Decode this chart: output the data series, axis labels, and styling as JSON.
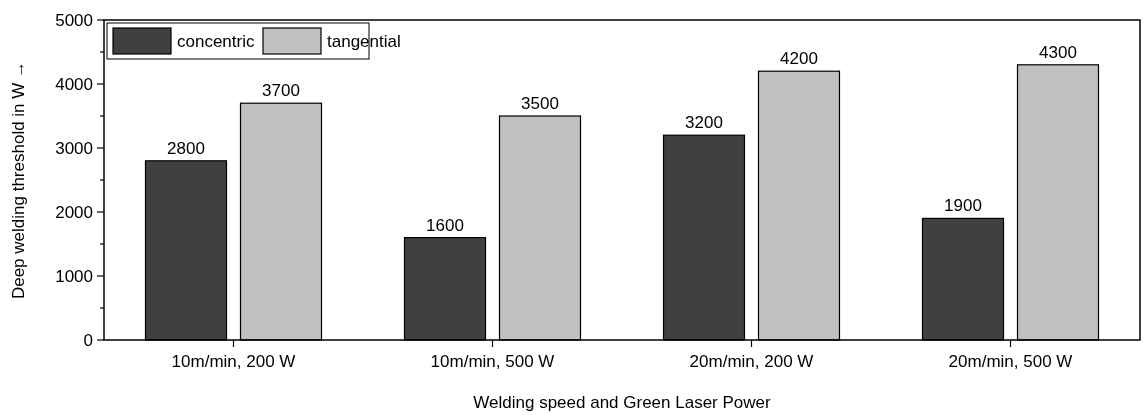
{
  "chart_data": {
    "type": "bar",
    "xlabel": "Welding speed and Green Laser Power",
    "ylabel": "Deep welding threshold in W →",
    "categories": [
      "10m/min, 200 W",
      "10m/min, 500 W",
      "20m/min, 200 W",
      "20m/min, 500 W"
    ],
    "series": [
      {
        "name": "concentric",
        "color": "#404040",
        "values": [
          2800,
          1600,
          3200,
          1900
        ]
      },
      {
        "name": "tangential",
        "color": "#c0c0c0",
        "values": [
          3700,
          3500,
          4200,
          4300
        ]
      }
    ],
    "ylim": [
      0,
      5000
    ],
    "yticks": [
      0,
      {
        "value": 500,
        "label": null
      },
      1000,
      {
        "value": 1500,
        "label": null
      },
      2000,
      {
        "value": 2500,
        "label": null
      },
      3000,
      {
        "value": 3500,
        "label": null
      },
      4000,
      {
        "value": 4500,
        "label": null
      },
      5000
    ],
    "data_labels": true,
    "grid": false,
    "legend": "top left"
  }
}
